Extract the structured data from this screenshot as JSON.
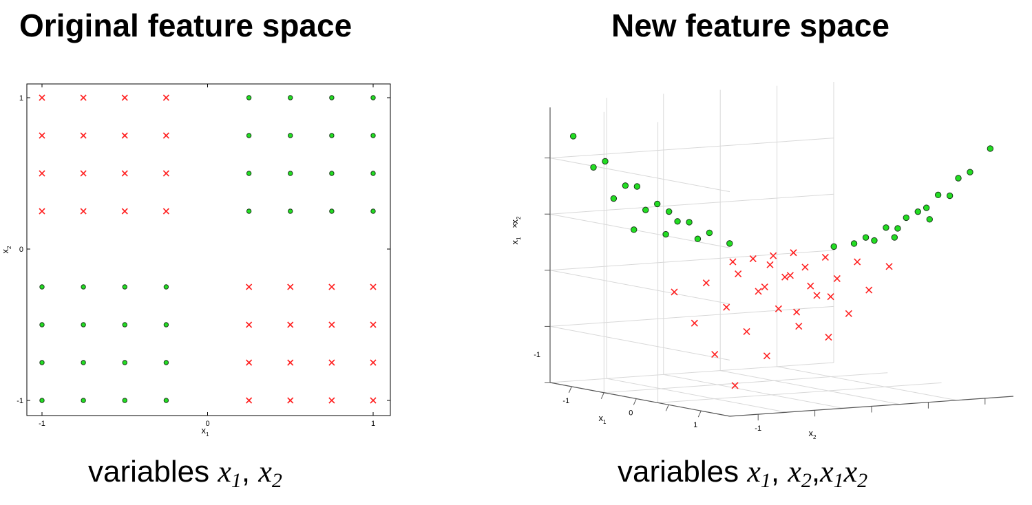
{
  "titles": {
    "left": "Original feature space",
    "right": "New feature space"
  },
  "captions": {
    "left": {
      "word": "variables",
      "vars": [
        "x1",
        "x2"
      ]
    },
    "right": {
      "word": "variables",
      "vars": [
        "x1",
        "x2",
        "x1x2"
      ]
    }
  },
  "colors": {
    "cross": "#ff2020",
    "dot": "#22dd22",
    "dot_edge": "#1a3a1a",
    "axis": "#000000",
    "grid": "#d8d8d8"
  },
  "chart_data": [
    {
      "type": "scatter",
      "title": "Original feature space",
      "xlabel": "x1",
      "ylabel": "x2",
      "xlim": [
        -1,
        1
      ],
      "ylim": [
        -1,
        1
      ],
      "xticks": [
        "-1",
        "0",
        "1"
      ],
      "yticks": [
        "-1",
        "0",
        "1"
      ],
      "grid": false,
      "series": [
        {
          "marker": "x",
          "color": "#ff2020",
          "points": [
            [
              -1,
              1
            ],
            [
              -0.75,
              1
            ],
            [
              -0.5,
              1
            ],
            [
              -0.25,
              1
            ],
            [
              -1,
              0.75
            ],
            [
              -0.75,
              0.75
            ],
            [
              -0.5,
              0.75
            ],
            [
              -0.25,
              0.75
            ],
            [
              -1,
              0.5
            ],
            [
              -0.75,
              0.5
            ],
            [
              -0.5,
              0.5
            ],
            [
              -0.25,
              0.5
            ],
            [
              -1,
              0.25
            ],
            [
              -0.75,
              0.25
            ],
            [
              -0.5,
              0.25
            ],
            [
              -0.25,
              0.25
            ],
            [
              0.25,
              -0.25
            ],
            [
              0.5,
              -0.25
            ],
            [
              0.75,
              -0.25
            ],
            [
              1,
              -0.25
            ],
            [
              0.25,
              -0.5
            ],
            [
              0.5,
              -0.5
            ],
            [
              0.75,
              -0.5
            ],
            [
              1,
              -0.5
            ],
            [
              0.25,
              -0.75
            ],
            [
              0.5,
              -0.75
            ],
            [
              0.75,
              -0.75
            ],
            [
              1,
              -0.75
            ],
            [
              0.25,
              -1
            ],
            [
              0.5,
              -1
            ],
            [
              0.75,
              -1
            ],
            [
              1,
              -1
            ]
          ]
        },
        {
          "marker": "o",
          "color": "#22dd22",
          "points": [
            [
              0.25,
              1
            ],
            [
              0.5,
              1
            ],
            [
              0.75,
              1
            ],
            [
              1,
              1
            ],
            [
              0.25,
              0.75
            ],
            [
              0.5,
              0.75
            ],
            [
              0.75,
              0.75
            ],
            [
              1,
              0.75
            ],
            [
              0.25,
              0.5
            ],
            [
              0.5,
              0.5
            ],
            [
              0.75,
              0.5
            ],
            [
              1,
              0.5
            ],
            [
              0.25,
              0.25
            ],
            [
              0.5,
              0.25
            ],
            [
              0.75,
              0.25
            ],
            [
              1,
              0.25
            ],
            [
              -1,
              -0.25
            ],
            [
              -0.75,
              -0.25
            ],
            [
              -0.5,
              -0.25
            ],
            [
              -0.25,
              -0.25
            ],
            [
              -1,
              -0.5
            ],
            [
              -0.75,
              -0.5
            ],
            [
              -0.5,
              -0.5
            ],
            [
              -0.25,
              -0.5
            ],
            [
              -1,
              -0.75
            ],
            [
              -0.75,
              -0.75
            ],
            [
              -0.5,
              -0.75
            ],
            [
              -0.25,
              -0.75
            ],
            [
              -1,
              -1
            ],
            [
              -0.75,
              -1
            ],
            [
              -0.5,
              -1
            ],
            [
              -0.25,
              -1
            ]
          ]
        }
      ]
    },
    {
      "type": "scatter",
      "title": "New feature space",
      "xlabel": "x1",
      "ylabel": "x2",
      "zlabel": "x1 × x2",
      "xlim": [
        -1,
        1
      ],
      "ylim": [
        -1,
        1
      ],
      "zlim": [
        -1,
        1
      ],
      "xticks": [
        "-1",
        "0",
        "1"
      ],
      "yticks": [
        "-1"
      ],
      "zticks": [
        "-1"
      ],
      "grid": true,
      "projection": "3d"
    }
  ]
}
